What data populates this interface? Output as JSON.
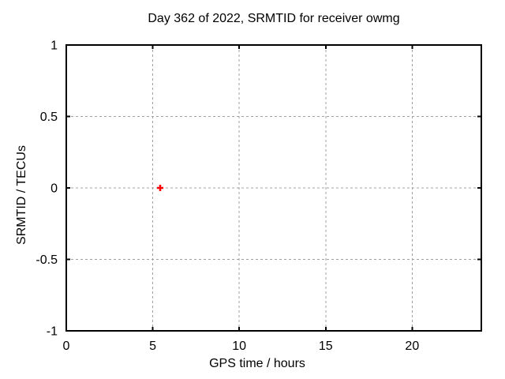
{
  "chart_data": {
    "type": "scatter",
    "title": "Day 362 of 2022, SRMTID for receiver owmg",
    "xlabel": "GPS time / hours",
    "ylabel": "SRMTID / TECUs",
    "xlim": [
      0,
      24
    ],
    "ylim": [
      -1,
      1
    ],
    "xticks": [
      0,
      5,
      10,
      15,
      20
    ],
    "yticks": [
      -1,
      -0.5,
      0,
      0.5,
      1
    ],
    "grid": true,
    "grid_style": "dashed",
    "legend": "none",
    "series": [
      {
        "name": "SRMTID",
        "marker": "plus",
        "color": "#ff0000",
        "points": [
          {
            "x": 5.43,
            "y": 0.0
          }
        ]
      }
    ],
    "colors": {
      "background": "#ffffff",
      "border": "#000000",
      "gridline": "#a0a0a0",
      "text": "#000000"
    }
  }
}
